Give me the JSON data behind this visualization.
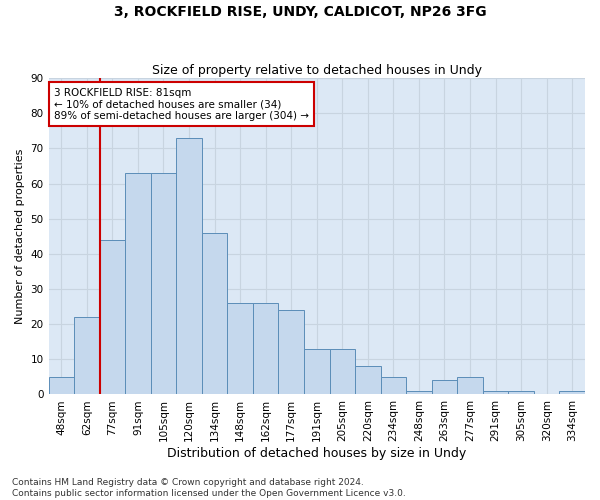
{
  "title": "3, ROCKFIELD RISE, UNDY, CALDICOT, NP26 3FG",
  "subtitle": "Size of property relative to detached houses in Undy",
  "xlabel": "Distribution of detached houses by size in Undy",
  "ylabel": "Number of detached properties",
  "bin_labels": [
    "48sqm",
    "62sqm",
    "77sqm",
    "91sqm",
    "105sqm",
    "120sqm",
    "134sqm",
    "148sqm",
    "162sqm",
    "177sqm",
    "191sqm",
    "205sqm",
    "220sqm",
    "234sqm",
    "248sqm",
    "263sqm",
    "277sqm",
    "291sqm",
    "305sqm",
    "320sqm",
    "334sqm"
  ],
  "bar_values": [
    5,
    22,
    44,
    63,
    63,
    73,
    46,
    26,
    26,
    24,
    13,
    13,
    8,
    5,
    1,
    4,
    5,
    1,
    1,
    0,
    1
  ],
  "bar_color": "#c5d8ed",
  "bar_edge_color": "#5b8db8",
  "property_size_index": 2,
  "property_line_color": "#cc0000",
  "annotation_line1": "3 ROCKFIELD RISE: 81sqm",
  "annotation_line2": "← 10% of detached houses are smaller (34)",
  "annotation_line3": "89% of semi-detached houses are larger (304) →",
  "annotation_box_color": "#ffffff",
  "annotation_box_edge_color": "#cc0000",
  "ylim": [
    0,
    90
  ],
  "yticks": [
    0,
    10,
    20,
    30,
    40,
    50,
    60,
    70,
    80,
    90
  ],
  "grid_color": "#c8d4e0",
  "background_color": "#dce8f5",
  "footer_text": "Contains HM Land Registry data © Crown copyright and database right 2024.\nContains public sector information licensed under the Open Government Licence v3.0.",
  "title_fontsize": 10,
  "subtitle_fontsize": 9,
  "xlabel_fontsize": 9,
  "ylabel_fontsize": 8,
  "tick_fontsize": 7.5,
  "annotation_fontsize": 7.5,
  "footer_fontsize": 6.5
}
